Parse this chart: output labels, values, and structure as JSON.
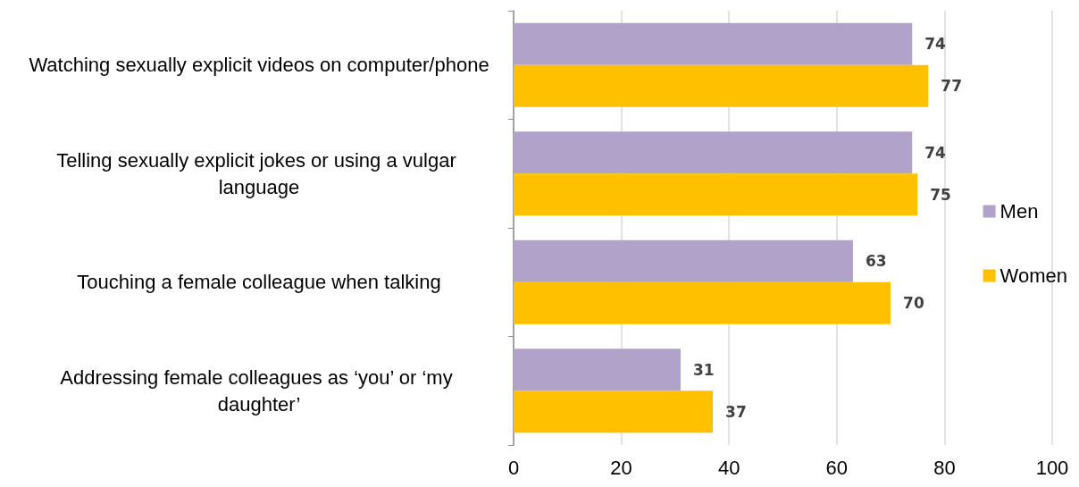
{
  "chart_data": {
    "type": "bar",
    "orientation": "horizontal",
    "categories": [
      "Watching sexually explicit videos on computer/phone",
      "Telling sexually explicit jokes or using a vulgar language",
      "Touching a female colleague when talking",
      "Addressing female colleagues as ‘you’ or ‘my daughter’"
    ],
    "series": [
      {
        "name": "Men",
        "color": "#b1a2c9",
        "values": [
          74,
          74,
          63,
          31
        ]
      },
      {
        "name": "Women",
        "color": "#ffc000",
        "values": [
          77,
          75,
          70,
          37
        ]
      }
    ],
    "xlim": [
      0,
      100
    ],
    "xticks": [
      0,
      20,
      40,
      60,
      80,
      100
    ],
    "grid": "x",
    "legend": "right",
    "data_labels": true
  }
}
